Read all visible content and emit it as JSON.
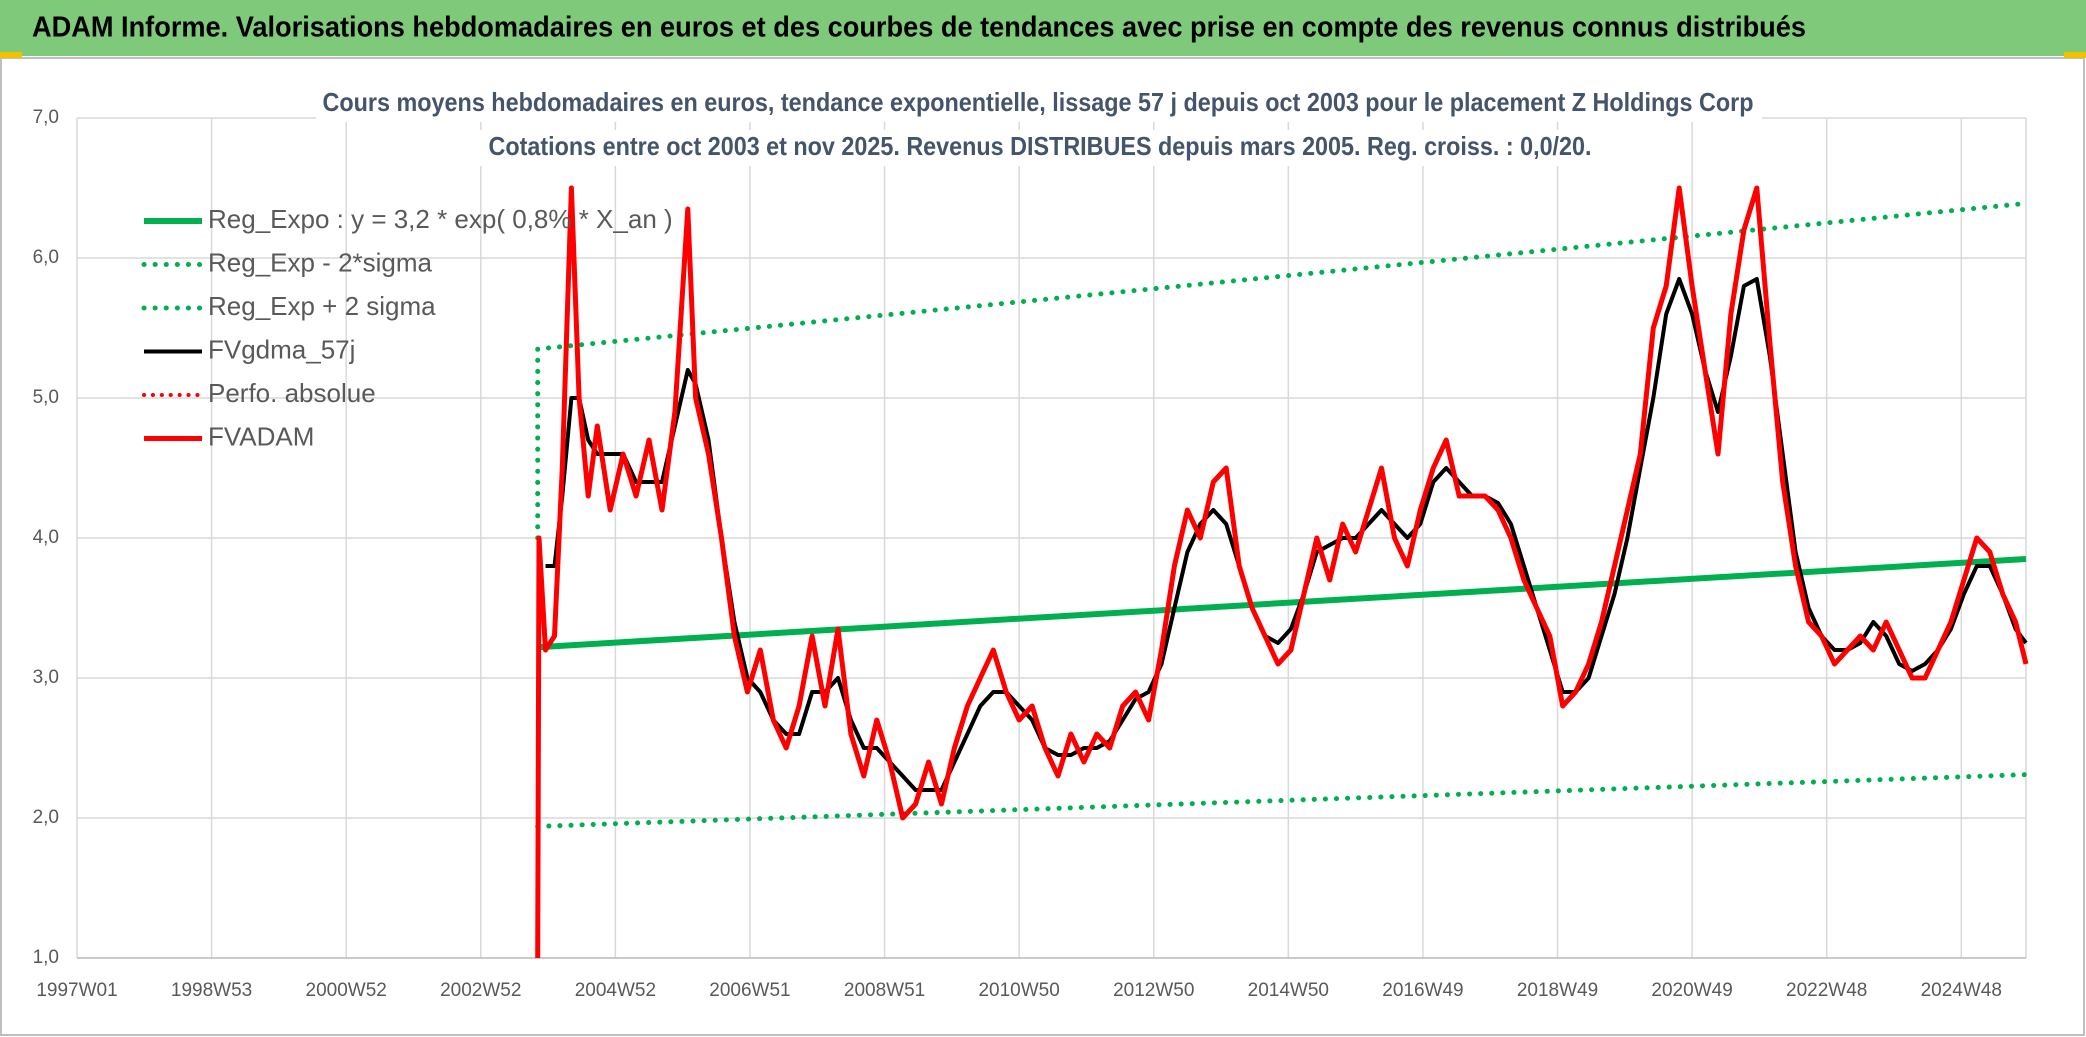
{
  "chart_data": {
    "type": "line",
    "header": "ADAM Informe. Valorisations hebdomadaires en euros et des courbes de tendances avec prise en compte des revenus connus distribués",
    "title": "Cours moyens hebdomadaires en euros, tendance exponentielle, lissage 57 j depuis oct 2003 pour le placement Z Holdings Corp",
    "subtitle": "Cotations entre oct 2003 et nov 2025. Revenus DISTRIBUES depuis mars 2005. Reg. croiss. : 0,0/20.",
    "xlim": [
      0,
      1506
    ],
    "xticks": [
      {
        "value": 0,
        "label": "1997W01"
      },
      {
        "value": 104,
        "label": "1998W53"
      },
      {
        "value": 208,
        "label": "2000W52"
      },
      {
        "value": 312,
        "label": "2002W52"
      },
      {
        "value": 416,
        "label": "2004W52"
      },
      {
        "value": 520,
        "label": "2006W51"
      },
      {
        "value": 624,
        "label": "2008W51"
      },
      {
        "value": 728,
        "label": "2010W50"
      },
      {
        "value": 832,
        "label": "2012W50"
      },
      {
        "value": 936,
        "label": "2014W50"
      },
      {
        "value": 1040,
        "label": "2016W49"
      },
      {
        "value": 1144,
        "label": "2018W49"
      },
      {
        "value": 1248,
        "label": "2020W49"
      },
      {
        "value": 1352,
        "label": "2022W48"
      },
      {
        "value": 1456,
        "label": "2024W48"
      }
    ],
    "ylim": [
      1,
      7
    ],
    "yticks": [
      {
        "value": 1,
        "label": "1,0"
      },
      {
        "value": 2,
        "label": "2,0"
      },
      {
        "value": 3,
        "label": "3,0"
      },
      {
        "value": 4,
        "label": "4,0"
      },
      {
        "value": 5,
        "label": "5,0"
      },
      {
        "value": 6,
        "label": "6,0"
      },
      {
        "value": 7,
        "label": "7,0"
      }
    ],
    "grid": true,
    "legend": "top-left",
    "x": [
      356,
      357,
      362,
      369,
      375,
      382,
      388,
      395,
      402,
      412,
      422,
      432,
      442,
      452,
      462,
      472,
      478,
      488,
      498,
      508,
      518,
      528,
      538,
      548,
      558,
      568,
      578,
      588,
      598,
      608,
      618,
      628,
      638,
      648,
      658,
      668,
      678,
      688,
      698,
      708,
      718,
      728,
      738,
      748,
      758,
      768,
      778,
      788,
      798,
      808,
      818,
      828,
      838,
      848,
      858,
      868,
      878,
      888,
      898,
      908,
      918,
      928,
      938,
      948,
      958,
      968,
      978,
      988,
      998,
      1008,
      1018,
      1028,
      1038,
      1048,
      1058,
      1068,
      1078,
      1088,
      1098,
      1108,
      1118,
      1128,
      1138,
      1148,
      1158,
      1168,
      1178,
      1188,
      1198,
      1208,
      1218,
      1228,
      1238,
      1248,
      1258,
      1268,
      1278,
      1288,
      1298,
      1308,
      1318,
      1328,
      1338,
      1348,
      1358,
      1368,
      1378,
      1388,
      1398,
      1408,
      1418,
      1428,
      1438,
      1448,
      1458,
      1468,
      1478,
      1488,
      1498,
      1506
    ],
    "series": [
      {
        "name": "Reg_Expo : y = 3,2 * exp( 0,8% * X_an )",
        "color": "#00b050",
        "dash": "solid",
        "width": 6,
        "x": [
          356,
          1506
        ],
        "values": [
          3.22,
          3.85
        ]
      },
      {
        "name": "Reg_Exp - 2*sigma",
        "color": "#00b050",
        "dash": "dotted",
        "width": 5,
        "x": [
          356,
          1506
        ],
        "values": [
          1.94,
          2.31
        ]
      },
      {
        "name": "Reg_Exp + 2 sigma",
        "color": "#00b050",
        "dash": "dotted",
        "width": 5,
        "x": [
          356,
          356,
          1506
        ],
        "values": [
          4.0,
          5.35,
          6.39
        ]
      },
      {
        "name": "FVgdma_57j",
        "color": "#000000",
        "dash": "solid",
        "width": 4,
        "values": [
          null,
          null,
          3.8,
          3.8,
          4.3,
          5.0,
          5.0,
          4.7,
          4.6,
          4.6,
          4.6,
          4.4,
          4.4,
          4.4,
          4.8,
          5.2,
          5.1,
          4.7,
          4.0,
          3.4,
          3.0,
          2.9,
          2.7,
          2.6,
          2.6,
          2.9,
          2.9,
          3.0,
          2.7,
          2.5,
          2.5,
          2.4,
          2.3,
          2.2,
          2.2,
          2.2,
          2.4,
          2.6,
          2.8,
          2.9,
          2.9,
          2.8,
          2.7,
          2.5,
          2.45,
          2.45,
          2.5,
          2.5,
          2.55,
          2.7,
          2.85,
          2.9,
          3.1,
          3.5,
          3.9,
          4.1,
          4.2,
          4.1,
          3.8,
          3.5,
          3.3,
          3.25,
          3.35,
          3.6,
          3.9,
          3.95,
          4.0,
          4.0,
          4.1,
          4.2,
          4.1,
          4.0,
          4.1,
          4.4,
          4.5,
          4.4,
          4.3,
          4.3,
          4.25,
          4.1,
          3.8,
          3.5,
          3.2,
          2.9,
          2.9,
          3.0,
          3.3,
          3.6,
          4.0,
          4.5,
          5.0,
          5.6,
          5.85,
          5.6,
          5.2,
          4.9,
          5.3,
          5.8,
          5.85,
          5.3,
          4.6,
          3.9,
          3.5,
          3.3,
          3.2,
          3.2,
          3.25,
          3.4,
          3.3,
          3.1,
          3.05,
          3.1,
          3.2,
          3.35,
          3.6,
          3.8,
          3.8,
          3.6,
          3.35,
          3.25
        ]
      },
      {
        "name": "Perfo. absolue",
        "color": "#ff0000",
        "dash": "dotted",
        "width": 4,
        "x": [],
        "values": []
      },
      {
        "name": "FVADAM",
        "color": "#ff0000",
        "dash": "solid",
        "width": 5,
        "values": [
          1.0,
          4.0,
          3.2,
          3.3,
          4.5,
          6.5,
          5.0,
          4.3,
          4.8,
          4.2,
          4.6,
          4.3,
          4.7,
          4.2,
          4.9,
          6.35,
          5.0,
          4.6,
          4.0,
          3.3,
          2.9,
          3.2,
          2.7,
          2.5,
          2.8,
          3.3,
          2.8,
          3.35,
          2.6,
          2.3,
          2.7,
          2.4,
          2.0,
          2.1,
          2.4,
          2.1,
          2.5,
          2.8,
          3.0,
          3.2,
          2.9,
          2.7,
          2.8,
          2.5,
          2.3,
          2.6,
          2.4,
          2.6,
          2.5,
          2.8,
          2.9,
          2.7,
          3.2,
          3.8,
          4.2,
          4.0,
          4.4,
          4.5,
          3.8,
          3.5,
          3.3,
          3.1,
          3.2,
          3.6,
          4.0,
          3.7,
          4.1,
          3.9,
          4.2,
          4.5,
          4.0,
          3.8,
          4.2,
          4.5,
          4.7,
          4.3,
          4.3,
          4.3,
          4.2,
          4.0,
          3.7,
          3.5,
          3.3,
          2.8,
          2.9,
          3.1,
          3.4,
          3.8,
          4.2,
          4.6,
          5.5,
          5.8,
          6.5,
          5.8,
          5.2,
          4.6,
          5.6,
          6.2,
          6.5,
          5.4,
          4.4,
          3.8,
          3.4,
          3.3,
          3.1,
          3.2,
          3.3,
          3.2,
          3.4,
          3.2,
          3.0,
          3.0,
          3.2,
          3.4,
          3.7,
          4.0,
          3.9,
          3.6,
          3.4,
          3.1
        ]
      }
    ]
  }
}
